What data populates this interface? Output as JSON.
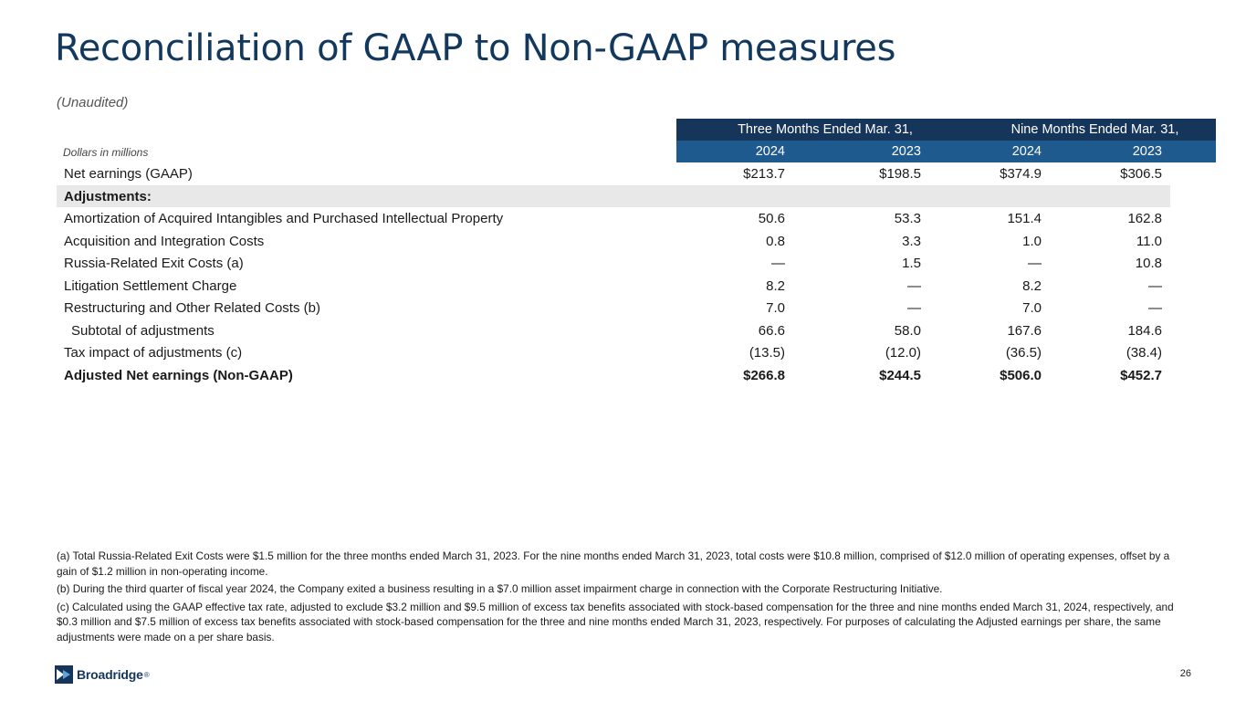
{
  "header": {
    "title": "Reconciliation of GAAP to Non-GAAP measures",
    "subtitle": "(Unaudited)"
  },
  "table": {
    "units_label": "Dollars in millions",
    "group_headers": [
      "Three Months Ended Mar. 31,",
      "Nine Months Ended Mar. 31,"
    ],
    "years": [
      "2024",
      "2023",
      "2024",
      "2023"
    ],
    "rows": [
      {
        "label": "Net earnings (GAAP)",
        "values": [
          "$213.7",
          "$198.5",
          "$374.9",
          "$306.5"
        ]
      },
      {
        "label": "Adjustments:",
        "values": [
          "",
          "",
          "",
          ""
        ]
      },
      {
        "label": "Amortization of Acquired Intangibles and Purchased Intellectual Property",
        "values": [
          "50.6",
          "53.3",
          "151.4",
          "162.8"
        ]
      },
      {
        "label": "Acquisition and Integration Costs",
        "values": [
          "0.8",
          "3.3",
          "1.0",
          "11.0"
        ]
      },
      {
        "label": "Russia-Related Exit Costs (a)",
        "values": [
          "—",
          "1.5",
          "—",
          "10.8"
        ]
      },
      {
        "label": "Litigation Settlement Charge",
        "values": [
          "8.2",
          "—",
          "8.2",
          "—"
        ]
      },
      {
        "label": "Restructuring and Other Related Costs (b)",
        "values": [
          "7.0",
          "—",
          "7.0",
          "—"
        ]
      },
      {
        "label": "Subtotal of adjustments",
        "values": [
          "66.6",
          "58.0",
          "167.6",
          "184.6"
        ]
      },
      {
        "label": "Tax impact of adjustments (c)",
        "values": [
          "(13.5)",
          "(12.0)",
          "(36.5)",
          "(38.4)"
        ]
      },
      {
        "label": "Adjusted Net earnings (Non-GAAP)",
        "values": [
          "$266.8",
          "$244.5",
          "$506.0",
          "$452.7"
        ]
      }
    ]
  },
  "footnotes": [
    "(a) Total Russia-Related Exit Costs were $1.5 million for the three months ended March 31, 2023. For the nine months ended March 31, 2023, total costs were $10.8 million, comprised of $12.0 million of operating expenses, offset by a gain of $1.2 million in non-operating income.",
    "(b) During the third quarter of fiscal year 2024, the Company exited a business resulting in a $7.0 million asset impairment charge in connection with the Corporate Restructuring Initiative.",
    "(c) Calculated using the GAAP effective tax rate, adjusted to exclude $3.2 million and $9.5 million of excess tax benefits associated with stock-based compensation for the three and nine months ended March 31, 2024, respectively, and $0.3 million and $7.5 million of excess tax benefits associated with stock-based compensation for the three and nine months ended March 31, 2023, respectively. For purposes of calculating the Adjusted earnings per share, the same adjustments were made on a per share basis."
  ],
  "footer": {
    "logo_text": "Broadridge",
    "logo_mark": "®",
    "page_number": "26"
  },
  "colors": {
    "title": "#12395d",
    "header_dark": "#15365a",
    "header_mid": "#1f5a8f",
    "shade": "#e8e8e8"
  }
}
